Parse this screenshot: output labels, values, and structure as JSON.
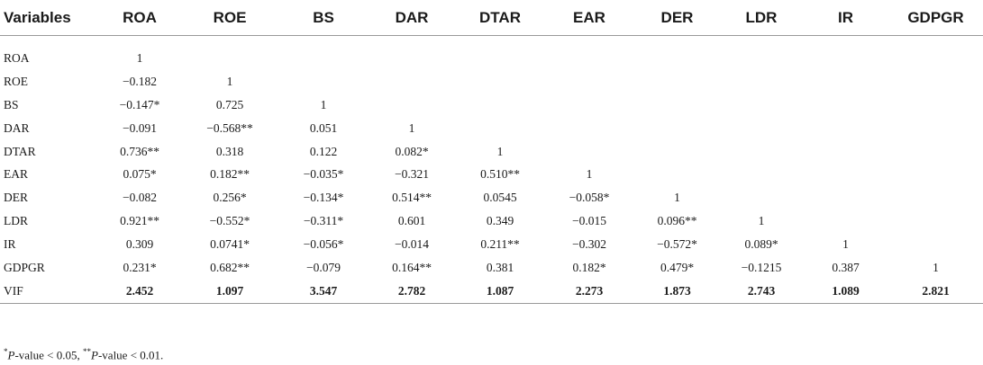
{
  "table": {
    "headers": [
      "Variables",
      "ROA",
      "ROE",
      "BS",
      "DAR",
      "DTAR",
      "EAR",
      "DER",
      "LDR",
      "IR",
      "GDPGR"
    ],
    "rows": [
      {
        "label": "ROA",
        "cells": [
          "1",
          "",
          "",
          "",
          "",
          "",
          "",
          "",
          "",
          ""
        ]
      },
      {
        "label": "ROE",
        "cells": [
          "−0.182",
          "1",
          "",
          "",
          "",
          "",
          "",
          "",
          "",
          ""
        ]
      },
      {
        "label": "BS",
        "cells": [
          "−0.147*",
          "0.725",
          "1",
          "",
          "",
          "",
          "",
          "",
          "",
          ""
        ]
      },
      {
        "label": "DAR",
        "cells": [
          "−0.091",
          "−0.568**",
          "0.051",
          "1",
          "",
          "",
          "",
          "",
          "",
          ""
        ]
      },
      {
        "label": "DTAR",
        "cells": [
          "0.736**",
          "0.318",
          "0.122",
          "0.082*",
          "1",
          "",
          "",
          "",
          "",
          ""
        ]
      },
      {
        "label": "EAR",
        "cells": [
          "0.075*",
          "0.182**",
          "−0.035*",
          "−0.321",
          "0.510**",
          "1",
          "",
          "",
          "",
          ""
        ]
      },
      {
        "label": "DER",
        "cells": [
          "−0.082",
          "0.256*",
          "−0.134*",
          "0.514**",
          "0.0545",
          "−0.058*",
          "1",
          "",
          "",
          ""
        ]
      },
      {
        "label": "LDR",
        "cells": [
          "0.921**",
          "−0.552*",
          "−0.311*",
          "0.601",
          "0.349",
          "−0.015",
          "0.096**",
          "1",
          "",
          ""
        ]
      },
      {
        "label": "IR",
        "cells": [
          "0.309",
          "0.0741*",
          "−0.056*",
          "−0.014",
          "0.211**",
          "−0.302",
          "−0.572*",
          "0.089*",
          "1",
          ""
        ]
      },
      {
        "label": "GDPGR",
        "cells": [
          "0.231*",
          "0.682**",
          "−0.079",
          "0.164**",
          "0.381",
          "0.182*",
          "0.479*",
          "−0.1215",
          "0.387",
          "1"
        ]
      },
      {
        "label": "VIF",
        "cells": [
          "2.452",
          "1.097",
          "3.547",
          "2.782",
          "1.087",
          "2.273",
          "1.873",
          "2.743",
          "1.089",
          "2.821"
        ]
      }
    ]
  },
  "footnote": {
    "mark1": "*",
    "text1": "P",
    "text1b": "-value < 0.05, ",
    "mark2": "**",
    "text2": "P",
    "text2b": "-value < 0.01."
  }
}
